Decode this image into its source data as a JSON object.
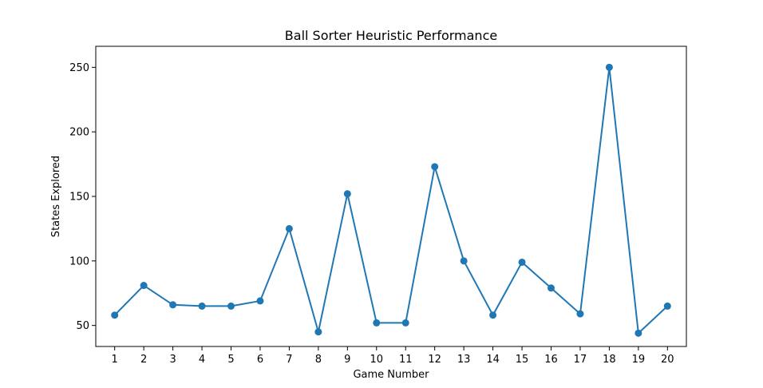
{
  "chart_data": {
    "type": "line",
    "title": "Ball Sorter Heuristic Performance",
    "xlabel": "Game Number",
    "ylabel": "States Explored",
    "x": [
      1,
      2,
      3,
      4,
      5,
      6,
      7,
      8,
      9,
      10,
      11,
      12,
      13,
      14,
      15,
      16,
      17,
      18,
      19,
      20
    ],
    "series": [
      {
        "values": [
          58,
          81,
          66,
          65,
          65,
          69,
          125,
          45,
          152,
          52,
          52,
          173,
          100,
          58,
          99,
          79,
          59,
          250,
          44,
          65
        ]
      }
    ],
    "yticks": [
      50,
      100,
      150,
      200,
      250
    ],
    "xlim": [
      0.35,
      20.65
    ],
    "ylim": [
      33.7,
      266.3
    ],
    "grid": false,
    "color": "#1f77b4"
  }
}
